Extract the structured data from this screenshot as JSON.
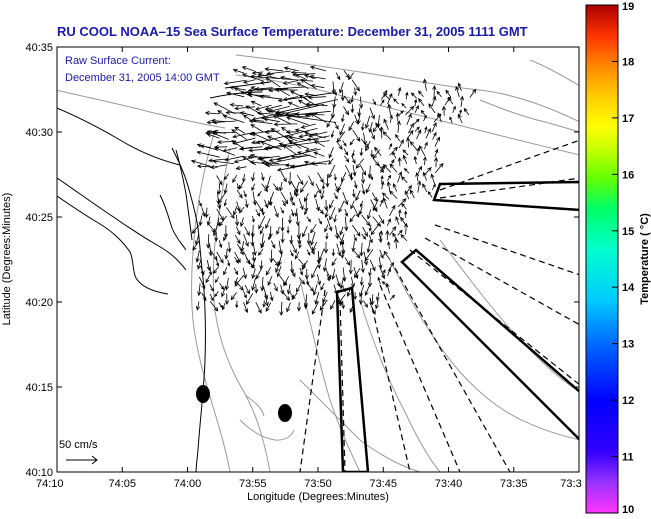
{
  "title": "RU COOL  NOAA–15  Sea Surface Temperature:  December 31, 2005 1111 GMT",
  "current_label": "Raw Surface Current:",
  "current_time": "December 31, 2005 14:00 GMT",
  "xlabel": "Longitude (Degrees:Minutes)",
  "ylabel": "Latitude (Degrees:Minutes)",
  "scale_label": "50 cm/s",
  "colorbar": {
    "label": "Temperature ( °C)",
    "ticks": [
      "19",
      "18",
      "17",
      "16",
      "15",
      "14",
      "13",
      "12",
      "11",
      "10"
    ]
  },
  "chart_data": {
    "type": "vector-field-map",
    "x_ticks": [
      "74:10",
      "74:05",
      "74:00",
      "73:55",
      "73:50",
      "73:45",
      "73:40",
      "73:35",
      "73:3"
    ],
    "y_ticks": [
      "40:35",
      "40:30",
      "40:25",
      "40:20",
      "40:15",
      "40:10"
    ],
    "temperature_range": [
      10,
      19
    ]
  }
}
